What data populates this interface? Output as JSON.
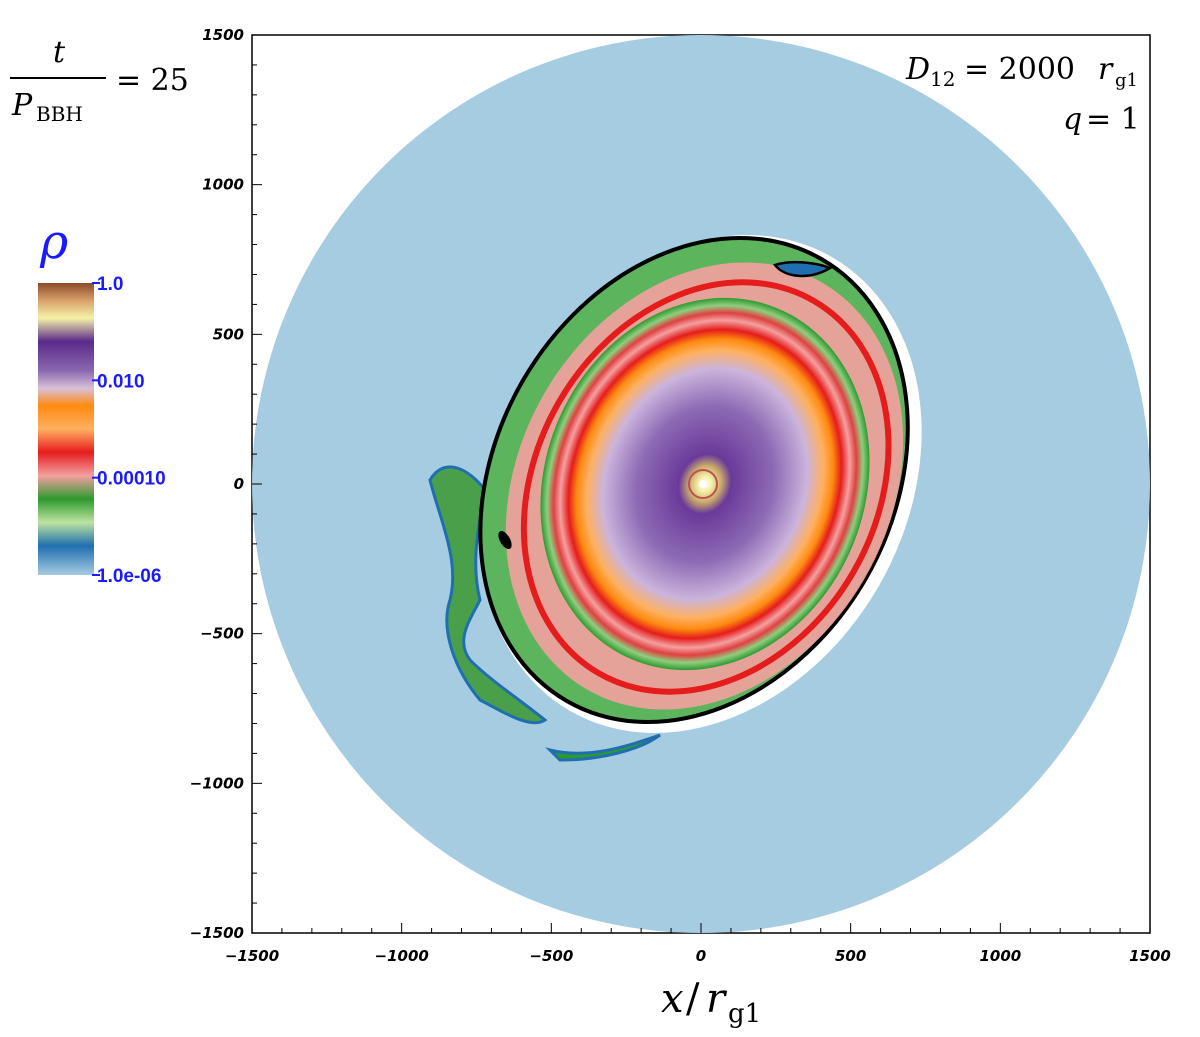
{
  "time_label": {
    "numerator": "t",
    "denominator_symbol": "P",
    "denominator_subscript": "BBH",
    "equals": "= 25"
  },
  "params": {
    "separation_symbol": "D",
    "separation_subscript": "12",
    "separation_eq": "= 2000",
    "separation_unit": "r",
    "separation_unit_subscript": "g1",
    "mass_ratio_symbol": "q",
    "mass_ratio_eq": "= 1"
  },
  "colorbar": {
    "title": "ρ",
    "tick_labels": [
      "1.0",
      "0.010",
      "0.00010",
      "1.0e-06"
    ],
    "tick_values": [
      1.0,
      0.01,
      0.0001,
      1e-06
    ],
    "scale": "log",
    "range": [
      1e-06,
      1.0
    ],
    "colors": [
      "#8b4a2a",
      "#f5f2a8",
      "#6a3a9a",
      "#c8b4d8",
      "#ff8a10",
      "#e51c1c",
      "#f4a0a0",
      "#2e9a2e",
      "#bde3a0",
      "#1f6fb0",
      "#a6cce2"
    ],
    "tick_color": "#1a1aff"
  },
  "chart_data": {
    "type": "heatmap",
    "title": "",
    "quantity": "ρ",
    "xlabel_symbol": "x",
    "xlabel_over": "/",
    "xlabel_unit": "r",
    "xlabel_unit_subscript": "g1",
    "ylabel": "",
    "xlim": [
      -1500,
      1500
    ],
    "ylim": [
      -1500,
      1500
    ],
    "x_ticks": [
      -1500,
      -1000,
      -500,
      0,
      500,
      1000,
      1500
    ],
    "y_ticks": [
      -1500,
      -1000,
      -500,
      0,
      500,
      1000,
      1500
    ],
    "x_tick_labels": [
      "−1500",
      "−1000",
      "−500",
      "0",
      "500",
      "1000",
      "1500"
    ],
    "y_tick_labels": [
      "−1500",
      "−1000",
      "−500",
      "0",
      "500",
      "1000",
      "1500"
    ],
    "domain_radius": 1500,
    "background_density": 1e-06,
    "disk": {
      "center": [
        0,
        0
      ],
      "outer_radius_x": 620,
      "outer_radius_y": 820,
      "tilt_deg": 30,
      "rings": [
        {
          "radius": 600,
          "density": 1e-05,
          "color": "#2e9a2e"
        },
        {
          "radius": 520,
          "density": 0.0001,
          "color": "#f4a0a0"
        },
        {
          "radius": 500,
          "density": 0.001,
          "color": "#e51c1c"
        },
        {
          "radius": 470,
          "density": 0.01,
          "color": "#ff8a10"
        },
        {
          "radius": 400,
          "density": 0.03,
          "color": "#c8b4d8"
        },
        {
          "radius": 300,
          "density": 0.05,
          "color": "#9b7ab8"
        },
        {
          "radius": 170,
          "density": 0.1,
          "color": "#6a3a9a"
        },
        {
          "radius": 60,
          "density": 0.5,
          "color": "#f5f2a8"
        }
      ]
    },
    "grid": false,
    "legend": "none"
  }
}
